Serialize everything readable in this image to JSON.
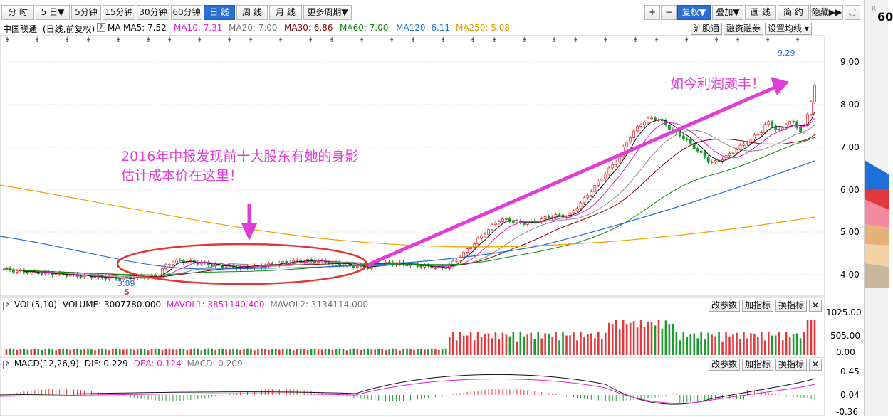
{
  "toolbar": {
    "periods": [
      "分 时",
      "5 日▼",
      "5分钟",
      "15分钟",
      "30分钟",
      "60分钟",
      "日 线",
      "周 线",
      "月 线",
      "更多周期▼"
    ],
    "active_period": "日 线",
    "right_buttons": [
      "+",
      "−",
      "复权▼",
      "叠加▼",
      "画 线",
      "简 约",
      "隐藏▶▶",
      "⛶"
    ]
  },
  "info": {
    "stock": "中国联通",
    "mode": "(日线,前复权)",
    "ma_label": "MA",
    "ma5": "MA5: 7.52",
    "ma10": "MA10: 7.31",
    "ma20": "MA20: 7.00",
    "ma30": "MA30: 6.86",
    "ma60": "MA60: 7.00",
    "ma120": "MA120: 6.11",
    "ma250": "MA250: 5.08",
    "btn_hgt": "沪股通",
    "btn_rzrq": "融资融券",
    "btn_setma": "设置均线 ▾"
  },
  "price_axis": [
    "9.00",
    "8.00",
    "7.00",
    "6.00",
    "5.00",
    "4.00"
  ],
  "price_annotations": {
    "high": "9.29",
    "low": "3.89",
    "s_marker": "S"
  },
  "annotations": {
    "left_text_line1": "2016年中报发现前十大股东有她的身影",
    "left_text_line2": "估计成本价在这里！",
    "right_text": "如今利润颇丰！"
  },
  "volume": {
    "label": "VOL(5,10)",
    "volume": "VOLUME: 3007780.000",
    "mavol1": "MAVOL1: 3851140.400",
    "mavol2": "MAVOL2: 3134114.000",
    "axis": [
      "1025.00",
      "505.00",
      "0.00"
    ],
    "buttons": [
      "改参数",
      "加指标",
      "换指标",
      "✕"
    ]
  },
  "macd": {
    "label": "MACD(12,26,9)",
    "dif": "DIF: 0.229",
    "dea": "DEA: 0.124",
    "macd": "MACD: 0.209",
    "axis": [
      "0.45",
      "0.04",
      "-0.36"
    ],
    "buttons": [
      "改参数",
      "加指标",
      "换指标",
      "✕"
    ]
  },
  "side": {
    "partial_text": "60",
    "r_mark": "R"
  },
  "colors": {
    "up": "#e4393c",
    "down": "#1a9c2e",
    "ma5": "#111111",
    "ma10": "#e020d0",
    "ma20": "#888888",
    "ma30": "#8b0000",
    "ma60": "#0a8a0a",
    "ma120": "#1e6fd9",
    "ma250": "#f0a000",
    "annotation": "#e23cd8"
  }
}
